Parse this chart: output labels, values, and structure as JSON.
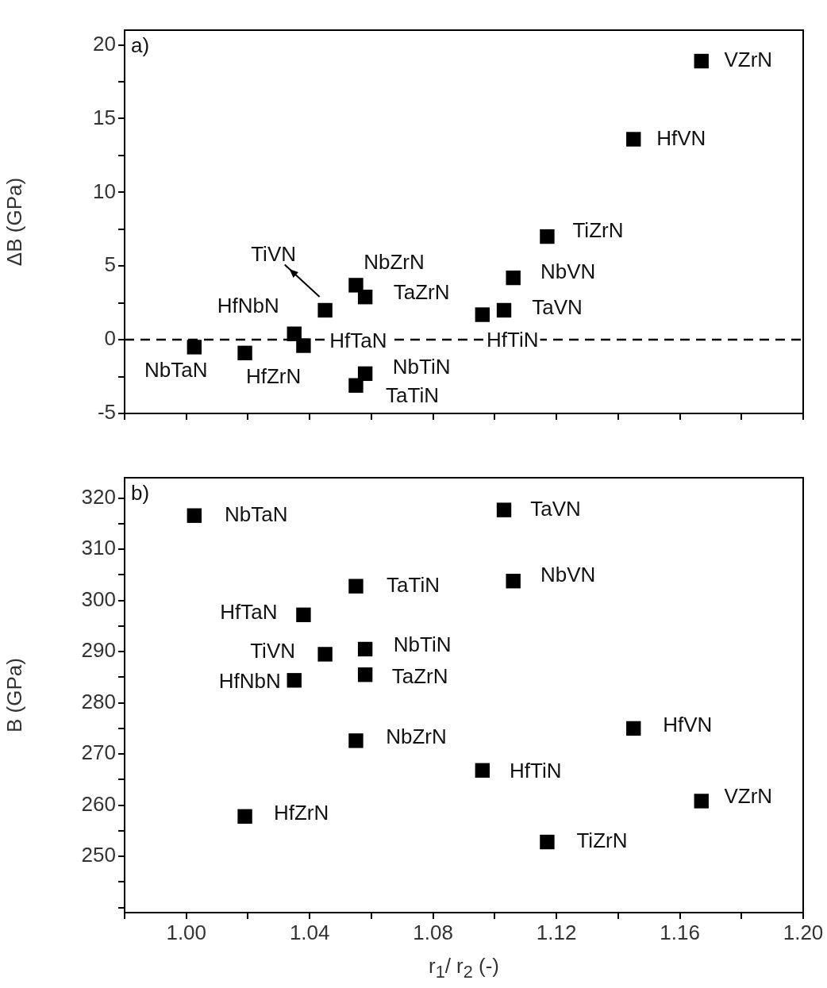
{
  "chart_data": [
    {
      "type": "scatter",
      "title": "a)",
      "ylabel": "ΔB (GPa)",
      "tick_labels": "y",
      "marker": "square",
      "color": "#000000",
      "grid": false,
      "legend": false,
      "x": [
        1.0026,
        1.019,
        1.035,
        1.038,
        1.045,
        1.055,
        1.058,
        1.058,
        1.055,
        1.096,
        1.103,
        1.106,
        1.117,
        1.145,
        1.167
      ],
      "values": [
        -0.5,
        -0.9,
        0.4,
        -0.4,
        2.0,
        3.7,
        2.9,
        -2.3,
        -3.1,
        1.7,
        2.0,
        4.2,
        7.0,
        13.6,
        18.9
      ],
      "xlim": [
        0.98,
        1.2
      ],
      "xticks": [
        {
          "value": 0.98,
          "label": null
        },
        1,
        {
          "value": 1.02,
          "label": null
        },
        1.04,
        {
          "value": 1.06,
          "label": null
        },
        1.08,
        {
          "value": 1.1,
          "label": null
        },
        1.12,
        {
          "value": 1.14,
          "label": null
        },
        1.16,
        {
          "value": 1.18,
          "label": null
        },
        1.2
      ],
      "ylim": [
        -5,
        21
      ],
      "yticks": [
        -5,
        {
          "value": -2.5,
          "label": null
        },
        0,
        {
          "value": 2.5,
          "label": null
        },
        5,
        {
          "value": 7.5,
          "label": null
        },
        10,
        {
          "value": 12.5,
          "label": null
        },
        15,
        {
          "value": 17.5,
          "label": null
        },
        20
      ],
      "ref_lines": [
        {
          "axis": "y",
          "value": 0,
          "line_style": "dashed",
          "color": "#000000"
        }
      ],
      "annotations": [
        "NbTaN",
        "HfZrN",
        "HfNbN",
        "HfTaN",
        "TiVN",
        "NbZrN",
        "TaZrN",
        "NbTiN",
        "TaTiN",
        "HfTiN",
        "TaVN",
        "NbVN",
        "TiZrN",
        "HfVN",
        "VZrN"
      ]
    },
    {
      "type": "scatter",
      "title": "b)",
      "ylabel": "B (GPa)",
      "xlabel": "r$_{1}$/ r$_{2}$ (-)",
      "marker": "square",
      "color": "#000000",
      "grid": false,
      "legend": false,
      "x": [
        1.0026,
        1.103,
        1.106,
        1.055,
        1.038,
        1.058,
        1.045,
        1.058,
        1.035,
        1.145,
        1.055,
        1.096,
        1.167,
        1.019,
        1.117
      ],
      "values": [
        316.6,
        317.7,
        303.8,
        302.8,
        297.2,
        290.5,
        289.5,
        285.5,
        284.4,
        275.0,
        272.6,
        266.8,
        260.8,
        257.8,
        252.8
      ],
      "xlim": [
        0.98,
        1.2
      ],
      "xticks": [
        {
          "value": 0.98,
          "label": null
        },
        {
          "value": 1,
          "label": "1.00"
        },
        {
          "value": 1.02,
          "label": null
        },
        1.04,
        {
          "value": 1.06,
          "label": null
        },
        1.08,
        {
          "value": 1.1,
          "label": null
        },
        1.12,
        {
          "value": 1.14,
          "label": null
        },
        1.16,
        {
          "value": 1.18,
          "label": null
        },
        {
          "value": 1.2,
          "label": "1.20"
        }
      ],
      "ylim": [
        239,
        324
      ],
      "yticks": [
        {
          "value": 240,
          "label": null
        },
        {
          "value": 245,
          "label": null
        },
        250,
        {
          "value": 255,
          "label": null
        },
        260,
        {
          "value": 265,
          "label": null
        },
        270,
        {
          "value": 275,
          "label": null
        },
        280,
        {
          "value": 285,
          "label": null
        },
        290,
        {
          "value": 295,
          "label": null
        },
        300,
        {
          "value": 305,
          "label": null
        },
        310,
        {
          "value": 315,
          "label": null
        },
        320
      ],
      "annotations": [
        "NbTaN",
        "TaVN",
        "NbVN",
        "TaTiN",
        "HfTaN",
        "NbTiN",
        "TiVN",
        "TaZrN",
        "HfNbN",
        "HfVN",
        "NbZrN",
        "HfTiN",
        "VZrN",
        "HfZrN",
        "TiZrN"
      ]
    }
  ]
}
